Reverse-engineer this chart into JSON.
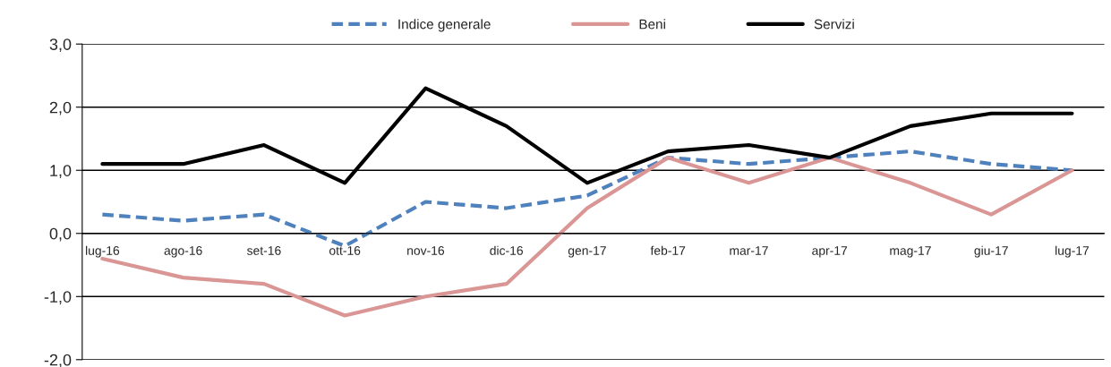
{
  "chart_data": {
    "type": "line",
    "categories": [
      "lug-16",
      "ago-16",
      "set-16",
      "ott-16",
      "nov-16",
      "dic-16",
      "gen-17",
      "feb-17",
      "mar-17",
      "apr-17",
      "mag-17",
      "giu-17",
      "lug-17"
    ],
    "series": [
      {
        "name": "Indice generale",
        "color": "#4f81bd",
        "line_style": "dashed",
        "values": [
          0.3,
          0.2,
          0.3,
          -0.2,
          0.5,
          0.4,
          0.6,
          1.2,
          1.1,
          1.2,
          1.3,
          1.1,
          1.0
        ]
      },
      {
        "name": "Beni",
        "color": "#d99694",
        "line_style": "solid",
        "values": [
          -0.4,
          -0.7,
          -0.8,
          -1.3,
          -1.0,
          -0.8,
          0.4,
          1.2,
          0.8,
          1.2,
          0.8,
          0.3,
          1.0
        ]
      },
      {
        "name": "Servizi",
        "color": "#000000",
        "line_style": "solid",
        "values": [
          1.1,
          1.1,
          1.4,
          0.8,
          2.3,
          1.7,
          0.8,
          1.3,
          1.4,
          1.2,
          1.7,
          1.9,
          1.9
        ]
      }
    ],
    "ylim": [
      -2.0,
      3.0
    ],
    "yticks": [
      {
        "value": -2.0,
        "label": "-2,0"
      },
      {
        "value": -1.0,
        "label": "-1,0"
      },
      {
        "value": 0.0,
        "label": "0,0"
      },
      {
        "value": 1.0,
        "label": "1,0"
      },
      {
        "value": 2.0,
        "label": "2,0"
      },
      {
        "value": 3.0,
        "label": "3,0"
      }
    ],
    "grid": "y",
    "legend": "top",
    "marker": "none"
  }
}
